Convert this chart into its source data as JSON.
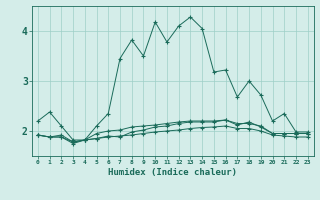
{
  "title": "",
  "xlabel": "Humidex (Indice chaleur)",
  "bg_color": "#d4ede9",
  "grid_color": "#9ecfc7",
  "line_color": "#1a6b5a",
  "x_labels": [
    "0",
    "1",
    "2",
    "3",
    "4",
    "5",
    "6",
    "7",
    "8",
    "9",
    "10",
    "11",
    "12",
    "13",
    "14",
    "15",
    "16",
    "17",
    "18",
    "19",
    "20",
    "21",
    "22",
    "23"
  ],
  "series": [
    [
      2.2,
      2.38,
      2.1,
      1.82,
      1.82,
      2.1,
      2.35,
      3.45,
      3.82,
      3.5,
      4.18,
      3.78,
      4.1,
      4.28,
      4.05,
      3.18,
      3.22,
      2.68,
      3.0,
      2.72,
      2.2,
      2.35,
      1.98,
      1.98
    ],
    [
      1.92,
      1.88,
      1.88,
      1.75,
      1.82,
      1.85,
      1.9,
      1.88,
      1.98,
      2.02,
      2.08,
      2.1,
      2.15,
      2.18,
      2.18,
      2.18,
      2.22,
      2.12,
      2.18,
      2.08,
      1.95,
      1.95,
      1.95,
      1.95
    ],
    [
      1.92,
      1.88,
      1.92,
      1.78,
      1.82,
      1.95,
      2.0,
      2.02,
      2.08,
      2.1,
      2.12,
      2.15,
      2.18,
      2.2,
      2.2,
      2.2,
      2.22,
      2.15,
      2.15,
      2.1,
      1.95,
      1.95,
      1.95,
      1.95
    ],
    [
      1.92,
      1.88,
      1.88,
      1.78,
      1.82,
      1.85,
      1.88,
      1.9,
      1.92,
      1.95,
      1.98,
      2.0,
      2.02,
      2.05,
      2.07,
      2.08,
      2.1,
      2.05,
      2.05,
      2.0,
      1.92,
      1.9,
      1.88,
      1.88
    ]
  ],
  "ylim": [
    1.5,
    4.5
  ],
  "yticks": [
    2,
    3,
    4
  ],
  "figsize": [
    3.2,
    2.0
  ],
  "dpi": 100
}
